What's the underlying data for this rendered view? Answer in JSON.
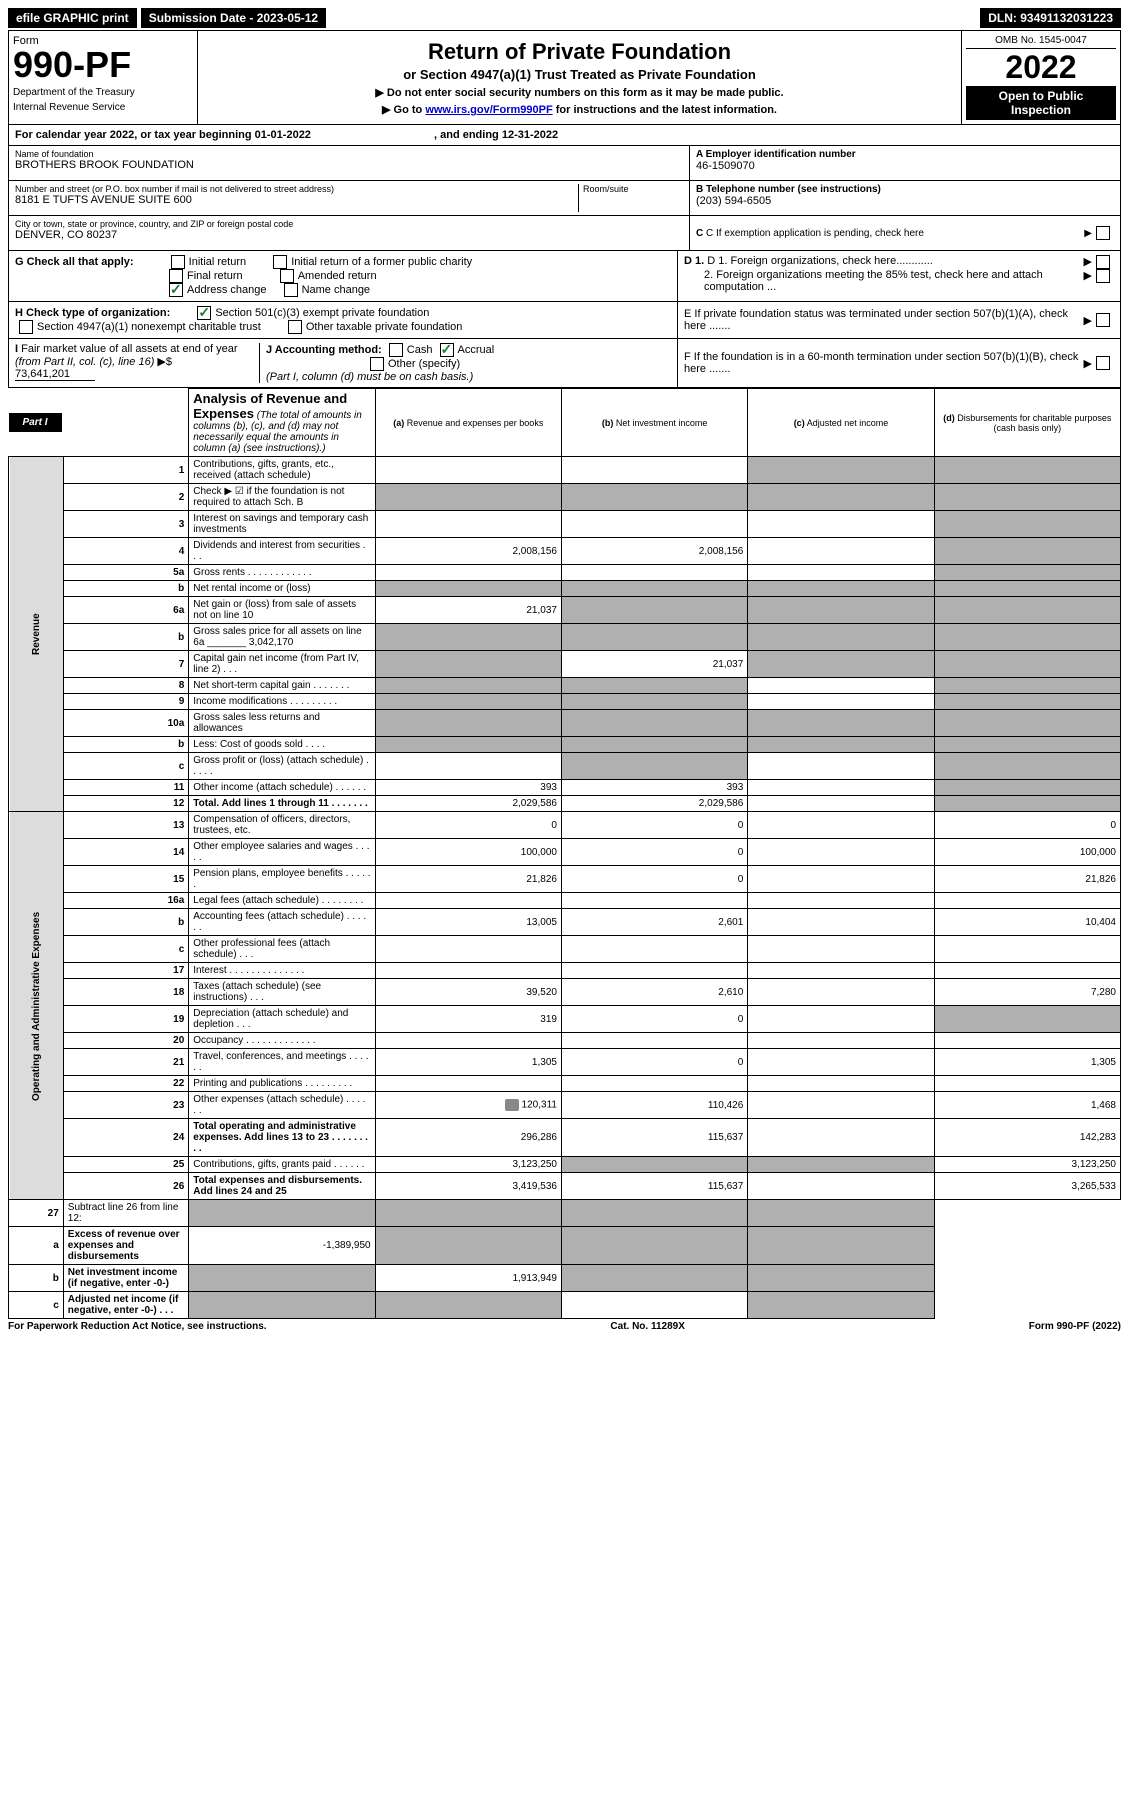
{
  "topbar": {
    "efile": "efile GRAPHIC print",
    "submission_label": "Submission Date - 2023-05-12",
    "dln_label": "DLN: 93491132031223"
  },
  "header": {
    "form_word": "Form",
    "form_number": "990-PF",
    "dept": "Department of the Treasury",
    "irs": "Internal Revenue Service",
    "title": "Return of Private Foundation",
    "subtitle": "or Section 4947(a)(1) Trust Treated as Private Foundation",
    "note1": "▶ Do not enter social security numbers on this form as it may be made public.",
    "note2_pre": "▶ Go to ",
    "note2_link": "www.irs.gov/Form990PF",
    "note2_post": " for instructions and the latest information.",
    "omb": "OMB No. 1545-0047",
    "year": "2022",
    "open": "Open to Public Inspection"
  },
  "cal_year": {
    "text_pre": "For calendar year 2022, or tax year beginning ",
    "begin": "01-01-2022",
    "mid": " , and ending ",
    "end": "12-31-2022"
  },
  "info": {
    "name_label": "Name of foundation",
    "name": "BROTHERS BROOK FOUNDATION",
    "addr_label": "Number and street (or P.O. box number if mail is not delivered to street address)",
    "addr": "8181 E TUFTS AVENUE SUITE 600",
    "room_label": "Room/suite",
    "city_label": "City or town, state or province, country, and ZIP or foreign postal code",
    "city": "DENVER, CO  80237",
    "a_label": "A Employer identification number",
    "a_val": "46-1509070",
    "b_label": "B Telephone number (see instructions)",
    "b_val": "(203) 594-6505",
    "c_label": "C If exemption application is pending, check here"
  },
  "g": {
    "label": "G Check all that apply:",
    "initial": "Initial return",
    "initial_former": "Initial return of a former public charity",
    "final": "Final return",
    "amended": "Amended return",
    "addr_change": "Address change",
    "name_change": "Name change"
  },
  "d": {
    "d1": "D 1. Foreign organizations, check here",
    "d2": "2. Foreign organizations meeting the 85% test, check here and attach computation ..."
  },
  "h": {
    "label": "H Check type of organization:",
    "opt1": "Section 501(c)(3) exempt private foundation",
    "opt2": "Section 4947(a)(1) nonexempt charitable trust",
    "opt3": "Other taxable private foundation"
  },
  "e": {
    "text": "E  If private foundation status was terminated under section 507(b)(1)(A), check here ......."
  },
  "i": {
    "label": "I Fair market value of all assets at end of year (from Part II, col. (c), line 16) ▶$ ",
    "val": "73,641,201"
  },
  "j": {
    "label": "J Accounting method:",
    "cash": "Cash",
    "accrual": "Accrual",
    "other": "Other (specify)",
    "note": "(Part I, column (d) must be on cash basis.)"
  },
  "f": {
    "text": "F  If the foundation is in a 60-month termination under section 507(b)(1)(B), check here ......."
  },
  "part1": {
    "label": "Part I",
    "title": "Analysis of Revenue and Expenses",
    "title_note": " (The total of amounts in columns (b), (c), and (d) may not necessarily equal the amounts in column (a) (see instructions).)",
    "col_a": "(a) Revenue and expenses per books",
    "col_b": "(b) Net investment income",
    "col_c": "(c) Adjusted net income",
    "col_d": "(d) Disbursements for charitable purposes (cash basis only)"
  },
  "side_labels": {
    "revenue": "Revenue",
    "expenses": "Operating and Administrative Expenses"
  },
  "rows": [
    {
      "n": "1",
      "desc": "Contributions, gifts, grants, etc., received (attach schedule)",
      "a": "",
      "b": "",
      "c": "",
      "d": "",
      "shade_c": true,
      "shade_d": true
    },
    {
      "n": "2",
      "desc": "Check ▶ ☑ if the foundation is not required to attach Sch. B",
      "a": "",
      "b": "",
      "c": "",
      "d": "",
      "shade_a": true,
      "shade_b": true,
      "shade_c": true,
      "shade_d": true,
      "bold_not": true
    },
    {
      "n": "3",
      "desc": "Interest on savings and temporary cash investments",
      "a": "",
      "b": "",
      "c": "",
      "d": "",
      "shade_d": true
    },
    {
      "n": "4",
      "desc": "Dividends and interest from securities   .   .   .",
      "a": "2,008,156",
      "b": "2,008,156",
      "c": "",
      "d": "",
      "shade_d": true
    },
    {
      "n": "5a",
      "desc": "Gross rents   .   .   .   .   .   .   .   .   .   .   .   .",
      "a": "",
      "b": "",
      "c": "",
      "d": "",
      "shade_d": true
    },
    {
      "n": "b",
      "desc": "Net rental income or (loss)",
      "a": "",
      "b": "",
      "c": "",
      "d": "",
      "shade_a": true,
      "shade_b": true,
      "shade_c": true,
      "shade_d": true
    },
    {
      "n": "6a",
      "desc": "Net gain or (loss) from sale of assets not on line 10",
      "a": "21,037",
      "b": "",
      "c": "",
      "d": "",
      "shade_b": true,
      "shade_c": true,
      "shade_d": true
    },
    {
      "n": "b",
      "desc": "Gross sales price for all assets on line 6a _______ 3,042,170",
      "a": "",
      "b": "",
      "c": "",
      "d": "",
      "shade_a": true,
      "shade_b": true,
      "shade_c": true,
      "shade_d": true
    },
    {
      "n": "7",
      "desc": "Capital gain net income (from Part IV, line 2)   .   .   .",
      "a": "",
      "b": "21,037",
      "c": "",
      "d": "",
      "shade_a": true,
      "shade_c": true,
      "shade_d": true
    },
    {
      "n": "8",
      "desc": "Net short-term capital gain   .   .   .   .   .   .   .",
      "a": "",
      "b": "",
      "c": "",
      "d": "",
      "shade_a": true,
      "shade_b": true,
      "shade_d": true
    },
    {
      "n": "9",
      "desc": "Income modifications   .   .   .   .   .   .   .   .   .",
      "a": "",
      "b": "",
      "c": "",
      "d": "",
      "shade_a": true,
      "shade_b": true,
      "shade_d": true
    },
    {
      "n": "10a",
      "desc": "Gross sales less returns and allowances",
      "a": "",
      "b": "",
      "c": "",
      "d": "",
      "shade_a": true,
      "shade_b": true,
      "shade_c": true,
      "shade_d": true
    },
    {
      "n": "b",
      "desc": "Less: Cost of goods sold   .   .   .   .",
      "a": "",
      "b": "",
      "c": "",
      "d": "",
      "shade_a": true,
      "shade_b": true,
      "shade_c": true,
      "shade_d": true
    },
    {
      "n": "c",
      "desc": "Gross profit or (loss) (attach schedule)   .   .   .   .   .",
      "a": "",
      "b": "",
      "c": "",
      "d": "",
      "shade_b": true,
      "shade_d": true
    },
    {
      "n": "11",
      "desc": "Other income (attach schedule)   .   .   .   .   .   .",
      "a": "393",
      "b": "393",
      "c": "",
      "d": "",
      "shade_d": true
    },
    {
      "n": "12",
      "desc": "Total. Add lines 1 through 11   .   .   .   .   .   .   .",
      "a": "2,029,586",
      "b": "2,029,586",
      "c": "",
      "d": "",
      "bold": true,
      "shade_d": true
    }
  ],
  "exp_rows": [
    {
      "n": "13",
      "desc": "Compensation of officers, directors, trustees, etc.",
      "a": "0",
      "b": "0",
      "c": "",
      "d": "0"
    },
    {
      "n": "14",
      "desc": "Other employee salaries and wages   .   .   .   .   .",
      "a": "100,000",
      "b": "0",
      "c": "",
      "d": "100,000"
    },
    {
      "n": "15",
      "desc": "Pension plans, employee benefits   .   .   .   .   .   .",
      "a": "21,826",
      "b": "0",
      "c": "",
      "d": "21,826"
    },
    {
      "n": "16a",
      "desc": "Legal fees (attach schedule)  .   .   .   .   .   .   .   .",
      "a": "",
      "b": "",
      "c": "",
      "d": ""
    },
    {
      "n": "b",
      "desc": "Accounting fees (attach schedule)  .   .   .   .   .   .",
      "a": "13,005",
      "b": "2,601",
      "c": "",
      "d": "10,404"
    },
    {
      "n": "c",
      "desc": "Other professional fees (attach schedule)   .   .   .",
      "a": "",
      "b": "",
      "c": "",
      "d": ""
    },
    {
      "n": "17",
      "desc": "Interest  .   .   .   .   .   .   .   .   .   .   .   .   .   .",
      "a": "",
      "b": "",
      "c": "",
      "d": ""
    },
    {
      "n": "18",
      "desc": "Taxes (attach schedule) (see instructions)   .   .   .",
      "a": "39,520",
      "b": "2,610",
      "c": "",
      "d": "7,280"
    },
    {
      "n": "19",
      "desc": "Depreciation (attach schedule) and depletion   .   .   .",
      "a": "319",
      "b": "0",
      "c": "",
      "d": "",
      "shade_d": true
    },
    {
      "n": "20",
      "desc": "Occupancy  .   .   .   .   .   .   .   .   .   .   .   .   .",
      "a": "",
      "b": "",
      "c": "",
      "d": ""
    },
    {
      "n": "21",
      "desc": "Travel, conferences, and meetings  .   .   .   .   .   .",
      "a": "1,305",
      "b": "0",
      "c": "",
      "d": "1,305"
    },
    {
      "n": "22",
      "desc": "Printing and publications  .   .   .   .   .   .   .   .   .",
      "a": "",
      "b": "",
      "c": "",
      "d": ""
    },
    {
      "n": "23",
      "desc": "Other expenses (attach schedule)  .   .   .   .   .   .",
      "a": "120,311",
      "b": "110,426",
      "c": "",
      "d": "1,468",
      "icon": true
    },
    {
      "n": "24",
      "desc": "Total operating and administrative expenses. Add lines 13 to 23   .   .   .   .   .   .   .   .   .",
      "a": "296,286",
      "b": "115,637",
      "c": "",
      "d": "142,283",
      "bold": true
    },
    {
      "n": "25",
      "desc": "Contributions, gifts, grants paid   .   .   .   .   .   .",
      "a": "3,123,250",
      "b": "",
      "c": "",
      "d": "3,123,250",
      "shade_b": true,
      "shade_c": true
    },
    {
      "n": "26",
      "desc": "Total expenses and disbursements. Add lines 24 and 25",
      "a": "3,419,536",
      "b": "115,637",
      "c": "",
      "d": "3,265,533",
      "bold": true
    }
  ],
  "final_rows": [
    {
      "n": "27",
      "desc": "Subtract line 26 from line 12:",
      "a": "",
      "b": "",
      "c": "",
      "d": "",
      "shade_a": true,
      "shade_b": true,
      "shade_c": true,
      "shade_d": true
    },
    {
      "n": "a",
      "desc": "Excess of revenue over expenses and disbursements",
      "a": "-1,389,950",
      "b": "",
      "c": "",
      "d": "",
      "bold": true,
      "shade_b": true,
      "shade_c": true,
      "shade_d": true
    },
    {
      "n": "b",
      "desc": "Net investment income (if negative, enter -0-)",
      "a": "",
      "b": "1,913,949",
      "c": "",
      "d": "",
      "bold": true,
      "shade_a": true,
      "shade_c": true,
      "shade_d": true
    },
    {
      "n": "c",
      "desc": "Adjusted net income (if negative, enter -0-)   .   .   .",
      "a": "",
      "b": "",
      "c": "",
      "d": "",
      "bold": true,
      "shade_a": true,
      "shade_b": true,
      "shade_d": true
    }
  ],
  "footer": {
    "left": "For Paperwork Reduction Act Notice, see instructions.",
    "center": "Cat. No. 11289X",
    "right": "Form 990-PF (2022)"
  }
}
